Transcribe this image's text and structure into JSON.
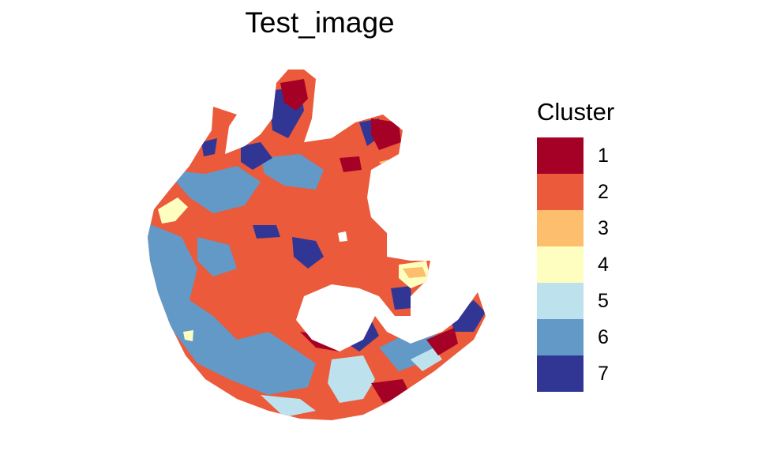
{
  "chart_data": {
    "type": "heatmap",
    "title": "Test_image",
    "legend": {
      "title": "Cluster",
      "placement": "right",
      "entries": [
        {
          "label": "1",
          "color": "#A50026"
        },
        {
          "label": "2",
          "color": "#EB5A3A"
        },
        {
          "label": "3",
          "color": "#FDBE6E"
        },
        {
          "label": "4",
          "color": "#FEFEC0"
        },
        {
          "label": "5",
          "color": "#BDE2EE"
        },
        {
          "label": "6",
          "color": "#6399C6"
        },
        {
          "label": "7",
          "color": "#313695"
        }
      ]
    },
    "axes": "none",
    "grid": false
  }
}
